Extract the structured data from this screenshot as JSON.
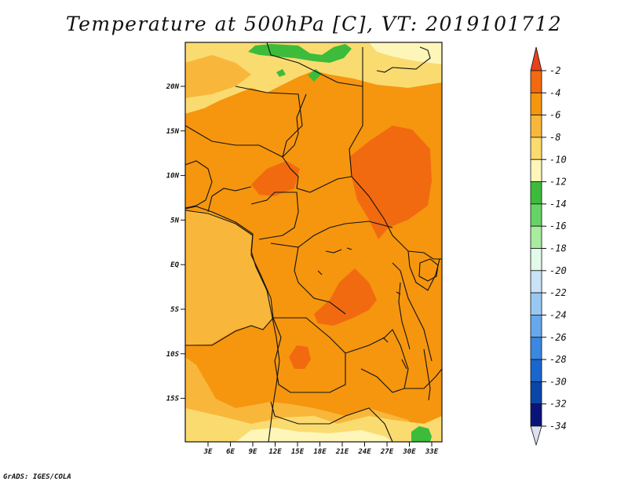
{
  "title": "Temperature at 500hPa [C], VT: 2019101712",
  "credit": "GrADS: IGES/COLA",
  "map": {
    "y_ticks": [
      "20N",
      "15N",
      "10N",
      "5N",
      "EQ",
      "5S",
      "10S",
      "15S"
    ],
    "x_ticks": [
      "3E",
      "6E",
      "9E",
      "12E",
      "15E",
      "18E",
      "21E",
      "24E",
      "27E",
      "30E",
      "33E"
    ]
  },
  "colorbar": {
    "labels": [
      "-2",
      "-4",
      "-6",
      "-8",
      "-10",
      "-12",
      "-14",
      "-16",
      "-18",
      "-20",
      "-22",
      "-24",
      "-26",
      "-28",
      "-30",
      "-32",
      "-34"
    ],
    "colors": [
      "#e8421c",
      "#f26a10",
      "#f5960e",
      "#f8b73b",
      "#fadb70",
      "#fdf6b8",
      "#3cbc3a",
      "#66d464",
      "#a7ec9f",
      "#e2faea",
      "#c8e2f8",
      "#98c8f2",
      "#66a8ec",
      "#3a88e0",
      "#1a66ce",
      "#0a46a8",
      "#0a1478",
      "#dde0f2"
    ]
  },
  "fields": {
    "ocean_color": "#f8b73b",
    "land_color": "#f5960e",
    "warm_color": "#f26a10",
    "cool_color": "#fadb70",
    "coolest_color": "#fdf6b8",
    "green_color": "#3cbc3a"
  }
}
